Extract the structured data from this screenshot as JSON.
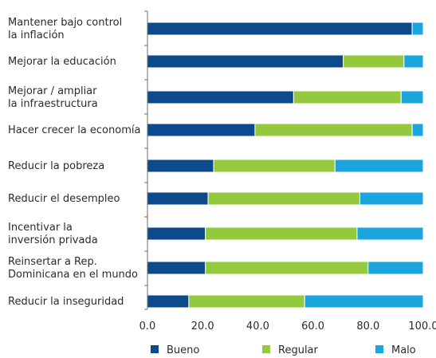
{
  "chart_data": {
    "type": "bar",
    "orientation": "horizontal",
    "stacked": true,
    "categories": [
      [
        "Mantener bajo control",
        "la inflación"
      ],
      [
        "Mejorar la educación"
      ],
      [
        "Mejorar / ampliar",
        "la infraestructura"
      ],
      [
        "Hacer crecer la economía"
      ],
      [
        "Reducir la pobreza"
      ],
      [
        "Reducir el desempleo"
      ],
      [
        "Incentivar la",
        "inversión privada"
      ],
      [
        "Reinsertar a Rep.",
        "Dominicana en el mundo"
      ],
      [
        "Reducir la inseguridad"
      ]
    ],
    "series": [
      {
        "name": "Bueno",
        "color": "#0d4a8c",
        "values": [
          96,
          71,
          53,
          39,
          24,
          22,
          21,
          21,
          15
        ]
      },
      {
        "name": "Regular",
        "color": "#94c83d",
        "values": [
          0,
          22,
          39,
          57,
          44,
          55,
          55,
          59,
          42
        ]
      },
      {
        "name": "Malo",
        "color": "#1ba5df",
        "values": [
          4,
          7,
          8,
          4,
          32,
          23,
          24,
          20,
          43
        ]
      }
    ],
    "xlim": [
      0,
      100
    ],
    "xticks": [
      "0.0",
      "20.0",
      "40.0",
      "60.0",
      "80.0",
      "100.0"
    ],
    "xtick_values": [
      0,
      20,
      40,
      60,
      80,
      100
    ],
    "grid": false,
    "legend_position": "bottom",
    "title": "",
    "xlabel": "",
    "ylabel": ""
  }
}
